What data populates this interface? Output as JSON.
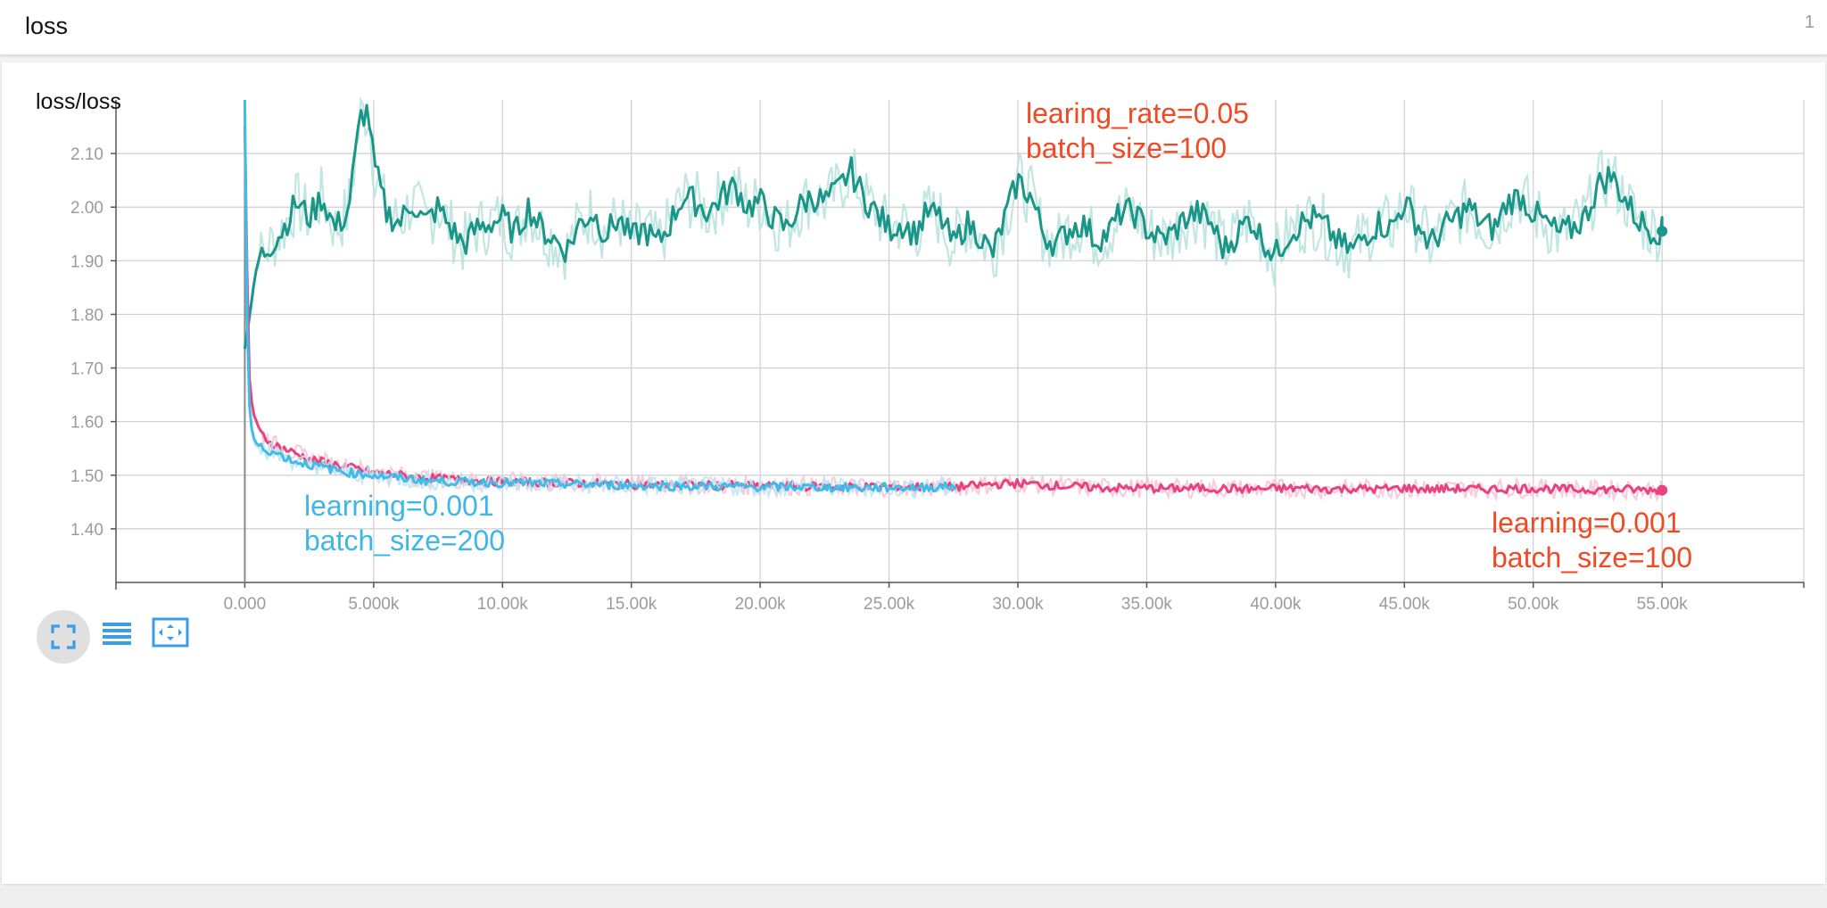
{
  "header": {
    "title": "loss",
    "count": "1"
  },
  "card": {
    "title": "loss/loss"
  },
  "toolbar": {
    "buttons": [
      {
        "name": "expand-button",
        "icon": "fullscreen-icon"
      },
      {
        "name": "data-table-button",
        "icon": "lines-icon"
      },
      {
        "name": "fit-domain-button",
        "icon": "fit-to-data-icon"
      }
    ]
  },
  "colors": {
    "teal": "#1a9688",
    "teal_light": "#b7e2dc",
    "pink": "#e8437e",
    "pink_light": "#f6c4d6",
    "blue": "#3fbdea",
    "blue_light": "#bde5f5",
    "annot_red": "#f04a25",
    "annot_blue": "#3db6e8"
  },
  "chart_data": {
    "type": "line",
    "title": "loss/loss",
    "xlabel": "",
    "ylabel": "",
    "xlim": [
      -5000,
      60500
    ],
    "ylim": [
      1.3,
      2.2
    ],
    "grid": true,
    "x_ticks": [
      0,
      5000,
      10000,
      15000,
      20000,
      25000,
      30000,
      35000,
      40000,
      45000,
      50000,
      55000
    ],
    "x_tick_labels": [
      "0.000",
      "5.000k",
      "10.00k",
      "15.00k",
      "20.00k",
      "25.00k",
      "30.00k",
      "35.00k",
      "40.00k",
      "45.00k",
      "50.00k",
      "55.00k"
    ],
    "y_ticks": [
      1.4,
      1.5,
      1.6,
      1.7,
      1.8,
      1.9,
      2.0,
      2.1
    ],
    "y_tick_labels": [
      "1.40",
      "1.50",
      "1.60",
      "1.70",
      "1.80",
      "1.90",
      "2.00",
      "2.10"
    ],
    "series": [
      {
        "name": "learing_rate=0.05 batch_size=100",
        "color": "teal",
        "x": [
          0,
          250,
          500,
          1000,
          1500,
          2000,
          2500,
          3000,
          3500,
          4000,
          4500,
          4800,
          5000,
          5500,
          6000,
          6500,
          7000,
          7500,
          8000,
          8500,
          9000,
          9500,
          10000,
          10500,
          11000,
          11500,
          12000,
          12500,
          13000,
          13500,
          14000,
          14500,
          15000,
          15500,
          16000,
          16500,
          17000,
          17500,
          18000,
          18500,
          19000,
          19500,
          20000,
          20500,
          21000,
          21500,
          22000,
          22500,
          23000,
          23500,
          24000,
          24500,
          25000,
          25500,
          26000,
          26500,
          27000,
          27500,
          28000,
          28500,
          29000,
          29500,
          30000,
          30500,
          31000,
          31500,
          32000,
          32500,
          33000,
          33500,
          34000,
          34500,
          35000,
          35500,
          36000,
          36500,
          37000,
          37500,
          38000,
          38500,
          39000,
          39500,
          40000,
          40500,
          41000,
          41500,
          42000,
          42500,
          43000,
          43500,
          44000,
          44500,
          45000,
          45500,
          46000,
          46500,
          47000,
          47500,
          48000,
          48500,
          49000,
          49500,
          50000,
          50500,
          51000,
          51500,
          52000,
          52500,
          53000,
          53500,
          54000,
          54500,
          55000
        ],
        "values": [
          1.74,
          1.82,
          1.9,
          1.93,
          1.96,
          2.01,
          1.98,
          2.02,
          1.96,
          1.99,
          2.17,
          2.18,
          2.08,
          1.99,
          1.97,
          2.01,
          1.97,
          2.0,
          1.96,
          1.93,
          1.96,
          1.97,
          1.98,
          1.95,
          2.0,
          1.96,
          1.94,
          1.92,
          1.97,
          1.99,
          1.95,
          1.98,
          1.94,
          1.96,
          1.93,
          1.97,
          2.02,
          2.01,
          1.99,
          2.02,
          2.04,
          2.0,
          2.01,
          1.98,
          1.96,
          2.0,
          2.02,
          2.01,
          2.03,
          2.07,
          2.02,
          1.99,
          1.96,
          1.97,
          1.95,
          1.99,
          1.98,
          1.93,
          1.97,
          1.95,
          1.91,
          1.98,
          2.05,
          2.02,
          1.95,
          1.93,
          1.96,
          1.97,
          1.94,
          1.95,
          1.99,
          1.99,
          1.96,
          1.94,
          1.95,
          1.98,
          1.99,
          1.97,
          1.92,
          1.95,
          1.98,
          1.94,
          1.91,
          1.95,
          1.97,
          1.98,
          1.96,
          1.93,
          1.92,
          1.95,
          1.97,
          1.96,
          2.01,
          1.97,
          1.93,
          1.96,
          1.98,
          2.0,
          1.97,
          1.96,
          2.01,
          2.02,
          1.99,
          1.97,
          1.95,
          1.96,
          1.98,
          2.04,
          2.06,
          2.02,
          1.98,
          1.96,
          1.955
        ],
        "last_value": 1.955
      },
      {
        "name": "learning=0.001 batch_size=100",
        "color": "pink",
        "x": [
          0,
          150,
          300,
          600,
          1000,
          1500,
          2000,
          2500,
          3000,
          4000,
          5000,
          6000,
          7000,
          8000,
          9000,
          10000,
          11000,
          12000,
          13000,
          14000,
          15000,
          16000,
          17000,
          18000,
          19000,
          20000,
          21000,
          22000,
          23000,
          24000,
          25000,
          26000,
          27000,
          28000,
          29000,
          30000,
          31000,
          32000,
          33000,
          34000,
          35000,
          36000,
          37000,
          38000,
          39000,
          40000,
          41000,
          42000,
          43000,
          44000,
          45000,
          46000,
          47000,
          48000,
          49000,
          50000,
          51000,
          52000,
          53000,
          54000,
          55000
        ],
        "values": [
          2.15,
          1.7,
          1.62,
          1.58,
          1.56,
          1.55,
          1.54,
          1.53,
          1.525,
          1.515,
          1.505,
          1.5,
          1.495,
          1.492,
          1.49,
          1.488,
          1.487,
          1.486,
          1.485,
          1.484,
          1.483,
          1.482,
          1.482,
          1.481,
          1.481,
          1.48,
          1.48,
          1.479,
          1.479,
          1.478,
          1.478,
          1.478,
          1.477,
          1.479,
          1.483,
          1.485,
          1.482,
          1.479,
          1.477,
          1.476,
          1.476,
          1.475,
          1.476,
          1.475,
          1.474,
          1.475,
          1.476,
          1.474,
          1.475,
          1.474,
          1.476,
          1.474,
          1.475,
          1.474,
          1.475,
          1.476,
          1.474,
          1.473,
          1.474,
          1.473,
          1.472
        ],
        "last_value": 1.472
      },
      {
        "name": "learning=0.001 batch_size=200",
        "color": "blue",
        "x": [
          0,
          100,
          200,
          400,
          700,
          1000,
          1500,
          2000,
          3000,
          4000,
          5000,
          6000,
          7000,
          8000,
          9000,
          10000,
          11000,
          12000,
          13000,
          14000,
          15000,
          16000,
          17000,
          18000,
          19000,
          20000,
          21000,
          22000,
          23000,
          24000,
          25000,
          26000,
          27000,
          27600
        ],
        "values": [
          2.2,
          1.75,
          1.6,
          1.56,
          1.55,
          1.545,
          1.535,
          1.525,
          1.515,
          1.505,
          1.5,
          1.495,
          1.49,
          1.488,
          1.487,
          1.486,
          1.485,
          1.484,
          1.483,
          1.482,
          1.481,
          1.48,
          1.48,
          1.479,
          1.479,
          1.478,
          1.478,
          1.478,
          1.477,
          1.477,
          1.477,
          1.477,
          1.478,
          1.479
        ]
      }
    ],
    "annotations": [
      {
        "lines": [
          "learing_rate=0.05",
          "batch_size=100"
        ],
        "color": "annot_red",
        "anchor": "top-center"
      },
      {
        "lines": [
          "learning=0.001",
          "batch_size=200"
        ],
        "color": "annot_blue",
        "anchor": "bottom-left"
      },
      {
        "lines": [
          "learning=0.001",
          "batch_size=100"
        ],
        "color": "annot_red",
        "anchor": "bottom-right"
      }
    ]
  }
}
